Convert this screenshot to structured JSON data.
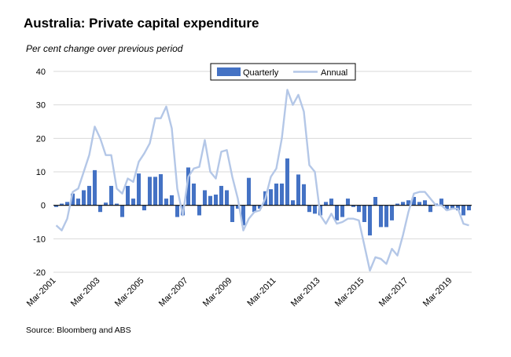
{
  "header": {
    "title": "Australia: Private capital expenditure",
    "subtitle": "Per cent change over previous period"
  },
  "footer": {
    "source": "Source: Bloomberg and ABS"
  },
  "colors": {
    "quarterly": "#4472C4",
    "annual": "#B4C7E7",
    "grid": "#D9D9D9",
    "zero_line": "#000000"
  },
  "chart_data": {
    "type": "bar",
    "title": "Australia: Private capital expenditure",
    "ylabel": "Per cent change over previous period",
    "ylim": [
      -20,
      40
    ],
    "yticks": [
      -20,
      -10,
      0,
      10,
      20,
      30,
      40
    ],
    "grid": true,
    "legend_position": "top-center",
    "x_tick_labels": [
      "Mar-2001",
      "Mar-2003",
      "Mar-2005",
      "Mar-2007",
      "Mar-2009",
      "Mar-2011",
      "Mar-2013",
      "Mar-2015",
      "Mar-2017",
      "Mar-2019"
    ],
    "start_quarter": "Mar-2001",
    "series": [
      {
        "name": "Quarterly",
        "type": "bar",
        "values": [
          -0.5,
          0.5,
          1,
          3.5,
          2,
          4.5,
          5.8,
          10.5,
          -2,
          0.8,
          5.8,
          0.5,
          -3.5,
          5.8,
          2,
          9.5,
          -1.5,
          8.5,
          8.5,
          9.3,
          2,
          3,
          -3.5,
          -3,
          11.3,
          6.5,
          -3,
          4.5,
          2.8,
          3.2,
          5.8,
          4.5,
          -5,
          -1,
          -6,
          8.2,
          -2,
          -1,
          4.2,
          4.8,
          6.5,
          6.5,
          14,
          1.5,
          9.2,
          6.3,
          -2,
          -2.5,
          -3,
          1,
          2,
          -4.5,
          -3.5,
          2,
          -0.5,
          -2,
          -5,
          -9,
          2.5,
          -6.5,
          -6.5,
          -4.5,
          0.5,
          1,
          1.5,
          2.5,
          1,
          1.5,
          -2,
          0.5,
          2,
          -1.5,
          -1,
          -1.5,
          -3,
          -1.5
        ]
      },
      {
        "name": "Annual",
        "type": "line",
        "values": [
          -6,
          -7.5,
          -4,
          4,
          5,
          10,
          15,
          23.5,
          20,
          15,
          15,
          5,
          3.5,
          8,
          7,
          13,
          15.5,
          18.5,
          26,
          26,
          29.5,
          23,
          5,
          -3,
          8.5,
          11,
          11.5,
          19.5,
          10,
          8,
          16,
          16.5,
          8.5,
          2,
          -7.5,
          -4,
          -2,
          -1.5,
          2,
          8.5,
          11,
          20,
          34.5,
          30,
          33,
          28,
          12,
          10,
          -3,
          -5.5,
          -2.5,
          -5.5,
          -5,
          -4,
          -4,
          -4.5,
          -12,
          -19.5,
          -15.5,
          -16,
          -17.5,
          -13,
          -15,
          -9,
          -2,
          3.5,
          4,
          4,
          2,
          0,
          0,
          -1.5,
          -1,
          -1,
          -5.5,
          -6
        ]
      }
    ]
  }
}
